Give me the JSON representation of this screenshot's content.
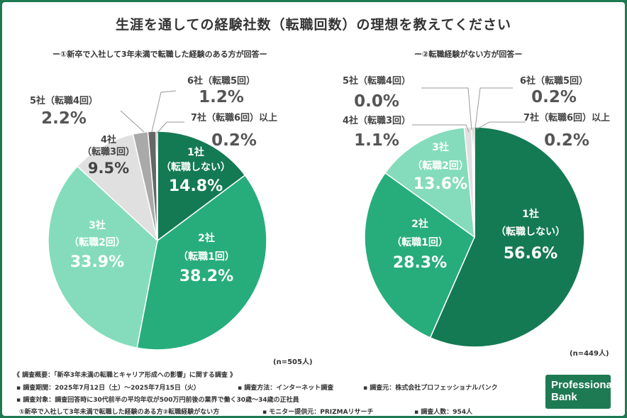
{
  "title": "生涯を通しての経験社数（転職回数）の理想を教えてください",
  "charts": {
    "left_subtitle": "ー①新卒で入社して3年未満で転職した経験のある方が回答ー",
    "right_subtitle": "ー②転職経験がない方が回答ー",
    "left_n": "(n=505人)",
    "right_n": "(n=449人)"
  },
  "chart_data": [
    {
      "type": "pie",
      "title": "ー①新卒で入社して3年未満で転職した経験のある方が回答ー",
      "n": "(n=505人)",
      "slices": [
        {
          "label": "1社（転職しない）",
          "value": 14.8,
          "display": "14.8%",
          "color": "#147a53"
        },
        {
          "label": "2社（転職1回）",
          "value": 38.2,
          "display": "38.2%",
          "color": "#27ad7c"
        },
        {
          "label": "3社（転職2回）",
          "value": 33.9,
          "display": "33.9%",
          "color": "#84dcbc"
        },
        {
          "label": "4社（転職3回）",
          "value": 9.5,
          "display": "9.5%",
          "color": "#e0e0e0"
        },
        {
          "label": "5社（転職4回）",
          "value": 2.2,
          "display": "2.2%",
          "color": "#a9a9a9"
        },
        {
          "label": "6社（転職5回）",
          "value": 1.2,
          "display": "1.2%",
          "color": "#666666"
        },
        {
          "label": "7社（転職6回）以上",
          "value": 0.2,
          "display": "0.2%",
          "color": "#3d3d3d"
        }
      ]
    },
    {
      "type": "pie",
      "title": "ー②転職経験がない方が回答ー",
      "n": "(n=449人)",
      "slices": [
        {
          "label": "1社（転職しない）",
          "value": 56.6,
          "display": "56.6%",
          "color": "#147a53"
        },
        {
          "label": "2社（転職1回）",
          "value": 28.3,
          "display": "28.3%",
          "color": "#27ad7c"
        },
        {
          "label": "3社（転職2回）",
          "value": 13.6,
          "display": "13.6%",
          "color": "#84dcbc"
        },
        {
          "label": "4社（転職3回）",
          "value": 1.1,
          "display": "1.1%",
          "color": "#e0e0e0"
        },
        {
          "label": "5社（転職4回）",
          "value": 0.0,
          "display": "0.0%",
          "color": "#a9a9a9"
        },
        {
          "label": "6社（転職5回）",
          "value": 0.2,
          "display": "0.2%",
          "color": "#666666"
        },
        {
          "label": "7社（転職6回）以上",
          "value": 0.2,
          "display": "0.2%",
          "color": "#3d3d3d"
        }
      ]
    }
  ],
  "footer": {
    "overview": "《 調査概要：「新卒3年未満の転職とキャリア形成への影響」に関する調査 》",
    "period": "▪ 調査期間：2025年7月12日（土）〜2025年7月15日（火）",
    "method": "▪ 調査方法：インターネット調査",
    "source": "▪ 調査元：株式会社プロフェッショナルバンク",
    "target": "▪ 調査対象：調査回答時に30代前半の平均年収が500万円前後の業界で働く30歳〜34歳の正社員",
    "groups": "①新卒で入社して3年未満で転職した経験のある方②転職経験がない方",
    "monitor": "▪ モニター提供元：PRIZMAリサーチ",
    "count": "▪ 調査人数：954人"
  },
  "logo": {
    "line1": "Professional",
    "line2": "Bank"
  }
}
